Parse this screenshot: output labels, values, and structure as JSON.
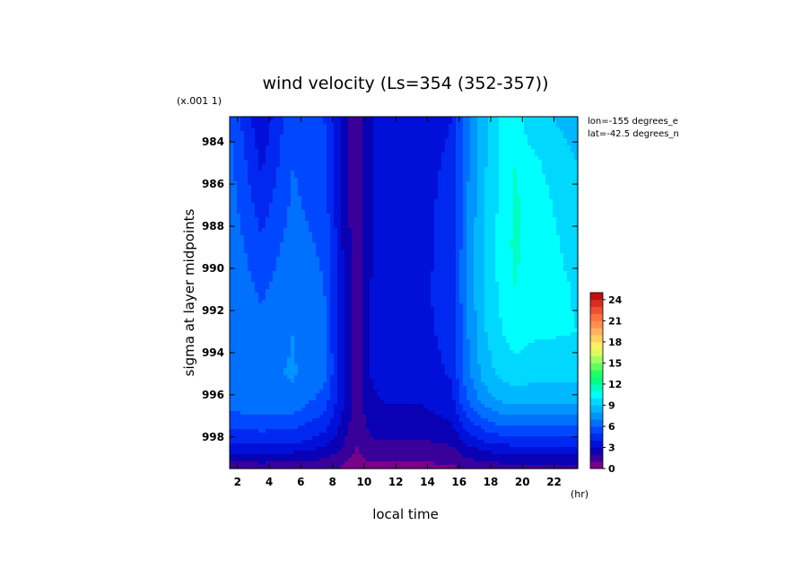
{
  "chart_data": {
    "type": "heatmap",
    "title": "wind velocity (Ls=354 (352-357))",
    "xlabel": "local time",
    "ylabel": "sigma at layer midpoints",
    "x_unit": "(hr)",
    "y_scale_note": "(x.001 1)",
    "annotations": [
      "lon=-155 degrees_e",
      "lat=-42.5 degrees_n"
    ],
    "xlim": [
      1.5,
      23.5
    ],
    "ylim": [
      999.5,
      982.8
    ],
    "x_ticks": [
      "2",
      "4",
      "6",
      "8",
      "10",
      "12",
      "14",
      "16",
      "18",
      "20",
      "22"
    ],
    "y_ticks": [
      "984",
      "986",
      "988",
      "990",
      "992",
      "994",
      "996",
      "998"
    ],
    "x": [
      1.5,
      3.5,
      5.5,
      7.5,
      8.5,
      9.5,
      10.5,
      11.5,
      13.5,
      15.5,
      16.5,
      17.5,
      18.5,
      19.5,
      20.5,
      23.5
    ],
    "y": [
      983.0,
      985.0,
      987.0,
      989.0,
      991.0,
      993.0,
      995.0,
      996.2,
      997.0,
      997.6,
      998.2,
      998.7,
      999.1,
      999.5
    ],
    "z": [
      [
        6.0,
        3.2,
        5.8,
        5.0,
        3.0,
        1.0,
        3.0,
        3.2,
        3.5,
        4.0,
        6.5,
        8.5,
        10.0,
        10.5,
        9.5,
        8.5
      ],
      [
        6.3,
        3.8,
        6.0,
        5.2,
        3.0,
        1.0,
        3.0,
        3.3,
        3.6,
        4.2,
        6.8,
        8.7,
        10.0,
        11.0,
        10.3,
        9.0
      ],
      [
        6.5,
        4.5,
        6.2,
        5.5,
        3.2,
        1.1,
        3.0,
        3.3,
        3.7,
        4.3,
        6.9,
        8.9,
        10.1,
        11.2,
        10.6,
        9.3
      ],
      [
        6.7,
        5.2,
        6.5,
        5.8,
        3.3,
        1.2,
        3.0,
        3.3,
        3.7,
        4.3,
        7.0,
        9.0,
        10.2,
        11.2,
        10.7,
        9.6
      ],
      [
        6.9,
        5.8,
        6.8,
        6.0,
        3.4,
        1.3,
        3.1,
        3.4,
        3.8,
        4.4,
        7.0,
        9.0,
        10.1,
        11.0,
        10.6,
        9.9
      ],
      [
        7.0,
        6.3,
        7.0,
        6.2,
        3.5,
        1.4,
        3.1,
        3.4,
        3.7,
        4.3,
        6.9,
        8.8,
        9.8,
        10.5,
        10.2,
        10.0
      ],
      [
        7.0,
        6.8,
        7.1,
        6.3,
        3.6,
        1.5,
        3.1,
        3.3,
        3.5,
        4.1,
        6.6,
        8.3,
        9.2,
        9.6,
        9.4,
        9.4
      ],
      [
        6.5,
        6.7,
        6.8,
        5.6,
        3.5,
        1.5,
        2.9,
        3.1,
        3.1,
        3.7,
        6.0,
        7.4,
        8.2,
        8.5,
        8.4,
        8.4
      ],
      [
        5.8,
        6.0,
        5.9,
        4.8,
        3.2,
        1.4,
        2.6,
        2.7,
        2.7,
        3.2,
        5.1,
        6.2,
        6.8,
        7.0,
        6.9,
        6.9
      ],
      [
        5.0,
        5.2,
        5.1,
        4.2,
        2.8,
        1.3,
        2.3,
        2.4,
        2.3,
        2.7,
        4.2,
        5.1,
        5.6,
        5.8,
        5.7,
        5.7
      ],
      [
        4.1,
        4.2,
        4.2,
        3.5,
        2.4,
        1.1,
        1.9,
        2.0,
        1.9,
        2.2,
        3.3,
        4.0,
        4.4,
        4.5,
        4.5,
        4.5
      ],
      [
        3.1,
        3.2,
        3.1,
        2.6,
        1.8,
        0.9,
        1.5,
        1.5,
        1.5,
        1.7,
        2.5,
        2.9,
        3.2,
        3.3,
        3.3,
        3.3
      ],
      [
        2.2,
        2.3,
        2.2,
        1.9,
        1.4,
        0.7,
        1.1,
        1.1,
        1.1,
        1.2,
        1.8,
        2.1,
        2.3,
        2.3,
        2.3,
        2.3
      ],
      [
        1.4,
        1.5,
        1.4,
        1.2,
        0.9,
        0.5,
        0.8,
        0.8,
        0.7,
        0.8,
        1.2,
        1.4,
        1.5,
        1.5,
        1.5,
        1.5
      ]
    ],
    "colorbar": {
      "ticks": [
        "0",
        "3",
        "6",
        "9",
        "12",
        "15",
        "18",
        "21",
        "24"
      ],
      "min": 0,
      "max": 25,
      "step": 1,
      "colors": [
        "#7a008a",
        "#3a009a",
        "#0a00b4",
        "#0010d8",
        "#0028f0",
        "#0048ff",
        "#0070ff",
        "#0094ff",
        "#00b8ff",
        "#00d8ff",
        "#00ffff",
        "#00ffc0",
        "#00ff80",
        "#20ff60",
        "#60ff60",
        "#a0ff60",
        "#d8ff60",
        "#fff060",
        "#ffd060",
        "#ffb060",
        "#ff9050",
        "#ff7040",
        "#f05030",
        "#d83020",
        "#c01010"
      ]
    },
    "grid": false,
    "legend": "colorbar at right"
  }
}
